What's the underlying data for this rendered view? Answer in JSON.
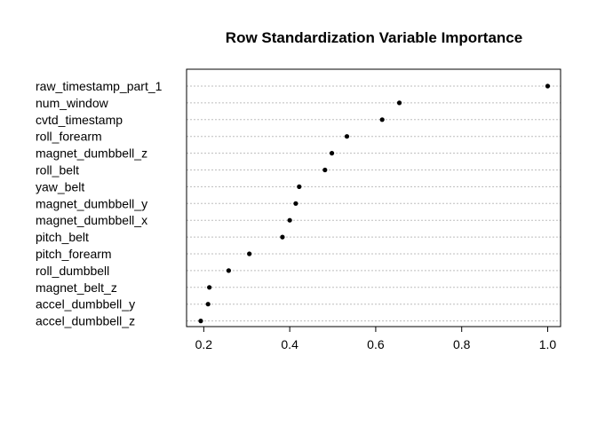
{
  "chart_data": {
    "type": "scatter",
    "title": "Row Standardization Variable Importance",
    "xlabel": "",
    "ylabel": "",
    "xlim": [
      0.16,
      1.03
    ],
    "xticks": [
      "0.2",
      "0.4",
      "0.6",
      "0.8",
      "1.0"
    ],
    "xtick_values": [
      0.2,
      0.4,
      0.6,
      0.8,
      1.0
    ],
    "grid": "horizontal dotted",
    "categories": [
      "raw_timestamp_part_1",
      "num_window",
      "cvtd_timestamp",
      "roll_forearm",
      "magnet_dumbbell_z",
      "roll_belt",
      "yaw_belt",
      "magnet_dumbbell_y",
      "magnet_dumbbell_x",
      "pitch_belt",
      "pitch_forearm",
      "roll_dumbbell",
      "magnet_belt_z",
      "accel_dumbbell_y",
      "accel_dumbbell_z"
    ],
    "values": [
      1.0,
      0.655,
      0.615,
      0.533,
      0.498,
      0.482,
      0.422,
      0.414,
      0.4,
      0.383,
      0.306,
      0.258,
      0.213,
      0.21,
      0.193
    ]
  }
}
